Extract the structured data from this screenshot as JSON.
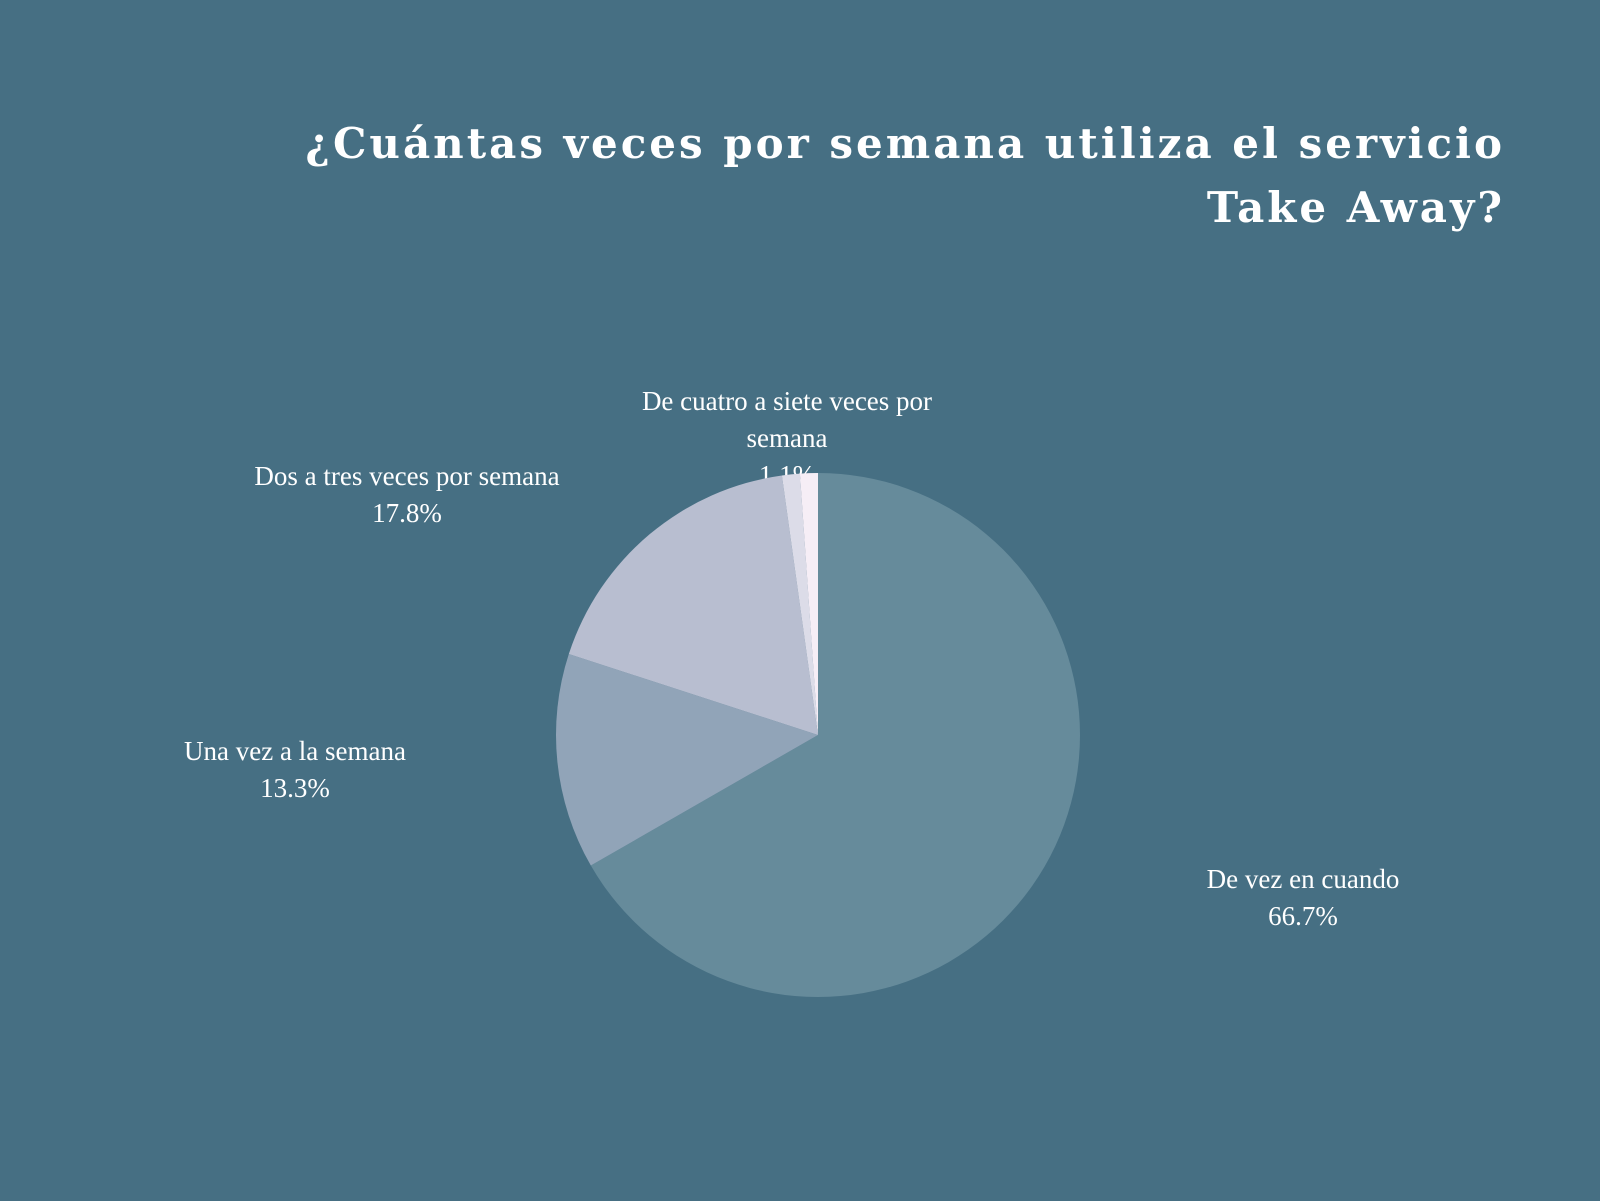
{
  "chart_data": {
    "type": "pie",
    "title": "¿Cuántas veces por semana utiliza el servicio Take Away?",
    "start_angle_deg": 0,
    "direction": "clockwise",
    "slices": [
      {
        "label_lines": [
          "De vez en cuando"
        ],
        "value": 66.7,
        "value_label": "66.7%",
        "color": "#668b9b"
      },
      {
        "label_lines": [
          "Una vez a la semana"
        ],
        "value": 13.3,
        "value_label": "13.3%",
        "color": "#91a4b8"
      },
      {
        "label_lines": [
          "Dos a tres veces por semana"
        ],
        "value": 17.8,
        "value_label": "17.8%",
        "color": "#b8bed0"
      },
      {
        "label_lines": [
          "De cuatro a siete veces por",
          "semana"
        ],
        "value": 1.1,
        "value_label": "1.1%",
        "color": "#dcdce8"
      },
      {
        "label_lines": [],
        "value": 1.1,
        "value_label": "",
        "color": "#f6eef6"
      }
    ]
  }
}
